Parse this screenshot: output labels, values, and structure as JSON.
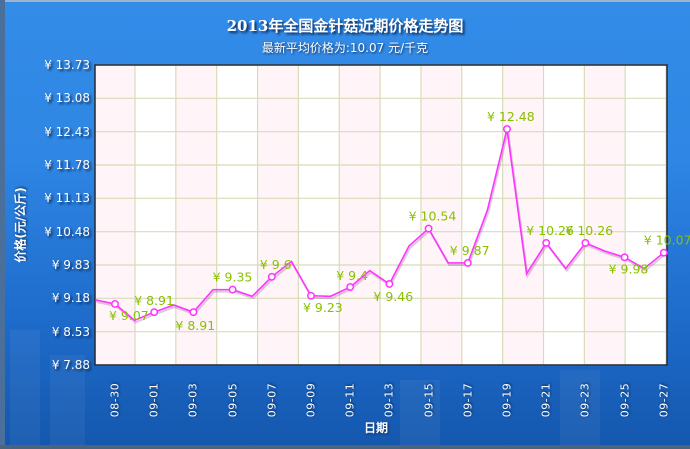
{
  "header": {
    "title": "2013年全国金针菇近期价格走势图",
    "subtitle": "最新平均价格为:10.07 元/千克"
  },
  "axes": {
    "ylabel": "价格(元/公斤)",
    "xlabel": "日期",
    "yticks": [
      "¥13.73",
      "¥13.08",
      "¥12.43",
      "¥11.78",
      "¥11.13",
      "¥10.48",
      "¥9.83",
      "¥9.18",
      "¥8.53",
      "¥7.88"
    ],
    "xticks": [
      "08-30",
      "09-01",
      "09-03",
      "09-05",
      "09-07",
      "09-09",
      "09-11",
      "09-13",
      "09-15",
      "09-17",
      "09-19",
      "09-21",
      "09-23",
      "09-25",
      "09-27"
    ]
  },
  "colors": {
    "line": "#ff33ff",
    "label": "#88c000",
    "grid": "#d8dcb8",
    "stripe": "#fff4f8",
    "background_top": "#338ce8",
    "background_bottom": "#1457ad"
  },
  "chart_data": {
    "type": "line",
    "title": "2013年全国金针菇近期价格走势图",
    "subtitle": "最新平均价格为:10.07 元/千克",
    "xlabel": "日期",
    "ylabel": "价格(元/公斤)",
    "ylim": [
      7.88,
      13.73
    ],
    "grid": true,
    "legend": "none",
    "x": [
      "08-29",
      "08-30",
      "08-31",
      "09-01",
      "09-02",
      "09-03",
      "09-04",
      "09-05",
      "09-06",
      "09-07",
      "09-08",
      "09-09",
      "09-10",
      "09-11",
      "09-12",
      "09-13",
      "09-14",
      "09-15",
      "09-16",
      "09-17",
      "09-18",
      "09-19",
      "09-20",
      "09-21",
      "09-22",
      "09-23",
      "09-24",
      "09-25",
      "09-26",
      "09-27"
    ],
    "series": [
      {
        "name": "价格",
        "values": [
          9.15,
          9.07,
          8.75,
          8.91,
          9.05,
          8.91,
          9.35,
          9.35,
          9.22,
          9.6,
          9.9,
          9.23,
          9.22,
          9.4,
          9.72,
          9.46,
          10.2,
          10.54,
          9.87,
          9.87,
          10.9,
          12.48,
          9.66,
          10.26,
          9.76,
          10.26,
          10.1,
          9.98,
          9.76,
          10.07
        ]
      }
    ],
    "annotations": [
      {
        "x": "08-30",
        "label": "¥9.07"
      },
      {
        "x": "09-01",
        "label": "¥8.91"
      },
      {
        "x": "09-03",
        "label": "¥8.91"
      },
      {
        "x": "09-05",
        "label": "¥9.35"
      },
      {
        "x": "09-07",
        "label": "¥9.6"
      },
      {
        "x": "09-09",
        "label": "¥9.23"
      },
      {
        "x": "09-11",
        "label": "¥9.4"
      },
      {
        "x": "09-13",
        "label": "¥9.46"
      },
      {
        "x": "09-15",
        "label": "¥10.54"
      },
      {
        "x": "09-17",
        "label": "¥9.87"
      },
      {
        "x": "09-19",
        "label": "¥12.48"
      },
      {
        "x": "09-21",
        "label": "¥10.26"
      },
      {
        "x": "09-23",
        "label": "¥10.26"
      },
      {
        "x": "09-25",
        "label": "¥9.98"
      },
      {
        "x": "09-27",
        "label": "¥10.07"
      }
    ]
  }
}
